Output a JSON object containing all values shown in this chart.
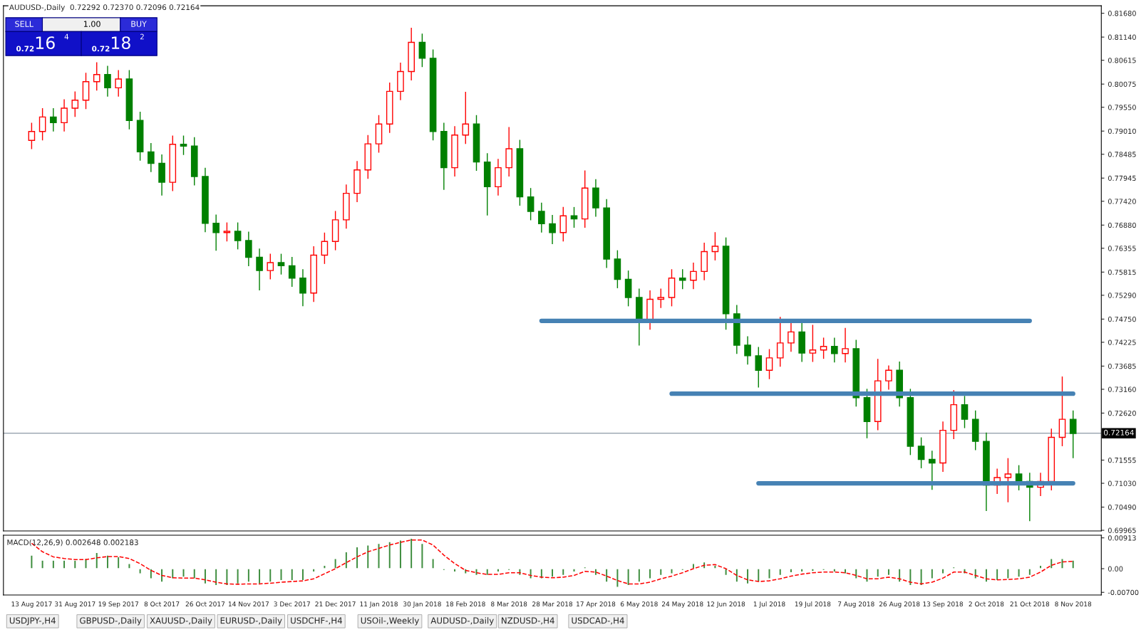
{
  "chart_data": [
    {
      "type": "candlestick",
      "title": "AUDUSD-,Daily  0.72292 0.72370 0.72096 0.72164",
      "categories": [
        null,
        null,
        null,
        null,
        null,
        null,
        null,
        null,
        null,
        null,
        null,
        null,
        null,
        null,
        null,
        null,
        null,
        null,
        null,
        null,
        null,
        null,
        null,
        null,
        null,
        null,
        null,
        null,
        null,
        null,
        null,
        null,
        null,
        null,
        null,
        null,
        null,
        null,
        null,
        null,
        null,
        null,
        null,
        null,
        null,
        null,
        null,
        null,
        null,
        null,
        null,
        null,
        null,
        null,
        null,
        null,
        null,
        null,
        null,
        null,
        null,
        null,
        null,
        null,
        null,
        null,
        null,
        null,
        null,
        null,
        null,
        null,
        null,
        null,
        null,
        null,
        null,
        null,
        null,
        null,
        null,
        null,
        null,
        null,
        null,
        null,
        null,
        null,
        null,
        null,
        null,
        null,
        null,
        null,
        null,
        null,
        null
      ],
      "ohlc": [
        [
          0.788,
          0.792,
          0.786,
          0.79
        ],
        [
          0.79,
          0.7953,
          0.788,
          0.7933
        ],
        [
          0.7933,
          0.7953,
          0.79,
          0.792
        ],
        [
          0.792,
          0.7973,
          0.79,
          0.7953
        ],
        [
          0.7953,
          0.7991,
          0.7933,
          0.7971
        ],
        [
          0.7971,
          0.8033,
          0.7951,
          0.8013
        ],
        [
          0.8013,
          0.8057,
          0.7993,
          0.8029
        ],
        [
          0.8029,
          0.8049,
          0.7979,
          0.7999
        ],
        [
          0.7999,
          0.8039,
          0.7979,
          0.8019
        ],
        [
          0.8019,
          0.8039,
          0.7905,
          0.7925
        ],
        [
          0.7925,
          0.7945,
          0.7834,
          0.7854
        ],
        [
          0.7854,
          0.7874,
          0.7808,
          0.7828
        ],
        [
          0.7828,
          0.7848,
          0.7755,
          0.7785
        ],
        [
          0.7785,
          0.7891,
          0.7765,
          0.7871
        ],
        [
          0.7871,
          0.7891,
          0.7847,
          0.7867
        ],
        [
          0.7867,
          0.7887,
          0.7778,
          0.7798
        ],
        [
          0.7798,
          0.7818,
          0.7672,
          0.7692
        ],
        [
          0.7692,
          0.7712,
          0.763,
          0.7671
        ],
        [
          0.7671,
          0.7694,
          0.7651,
          0.7674
        ],
        [
          0.7674,
          0.7694,
          0.7633,
          0.7653
        ],
        [
          0.7653,
          0.7673,
          0.7595,
          0.7615
        ],
        [
          0.7615,
          0.7635,
          0.754,
          0.7585
        ],
        [
          0.7585,
          0.7623,
          0.7565,
          0.7603
        ],
        [
          0.7603,
          0.7623,
          0.7576,
          0.7596
        ],
        [
          0.7596,
          0.7616,
          0.7548,
          0.7568
        ],
        [
          0.7568,
          0.7588,
          0.7504,
          0.7534
        ],
        [
          0.7534,
          0.764,
          0.7514,
          0.762
        ],
        [
          0.762,
          0.7671,
          0.76,
          0.7651
        ],
        [
          0.7651,
          0.772,
          0.7631,
          0.77
        ],
        [
          0.77,
          0.778,
          0.768,
          0.776
        ],
        [
          0.776,
          0.7833,
          0.774,
          0.7813
        ],
        [
          0.7813,
          0.7892,
          0.7793,
          0.7872
        ],
        [
          0.7872,
          0.7937,
          0.7852,
          0.7917
        ],
        [
          0.7917,
          0.8011,
          0.7897,
          0.7991
        ],
        [
          0.7991,
          0.8056,
          0.7971,
          0.8036
        ],
        [
          0.8036,
          0.8135,
          0.8016,
          0.8102
        ],
        [
          0.8102,
          0.8122,
          0.8046,
          0.8066
        ],
        [
          0.8066,
          0.8086,
          0.788,
          0.79
        ],
        [
          0.79,
          0.792,
          0.7768,
          0.7818
        ],
        [
          0.7818,
          0.7912,
          0.7798,
          0.7892
        ],
        [
          0.7892,
          0.799,
          0.7872,
          0.7917
        ],
        [
          0.7917,
          0.7937,
          0.7811,
          0.7831
        ],
        [
          0.7831,
          0.7851,
          0.771,
          0.7775
        ],
        [
          0.7775,
          0.7838,
          0.7755,
          0.7818
        ],
        [
          0.7818,
          0.791,
          0.7798,
          0.7861
        ],
        [
          0.7861,
          0.7881,
          0.7732,
          0.7752
        ],
        [
          0.7752,
          0.7772,
          0.7699,
          0.7719
        ],
        [
          0.7719,
          0.7739,
          0.7671,
          0.7691
        ],
        [
          0.7691,
          0.7711,
          0.7645,
          0.7671
        ],
        [
          0.7671,
          0.7729,
          0.7651,
          0.7709
        ],
        [
          0.7709,
          0.7729,
          0.7682,
          0.7702
        ],
        [
          0.7702,
          0.7812,
          0.7682,
          0.7772
        ],
        [
          0.7772,
          0.7792,
          0.7707,
          0.7727
        ],
        [
          0.7727,
          0.7747,
          0.7591,
          0.7611
        ],
        [
          0.7611,
          0.7631,
          0.7545,
          0.7565
        ],
        [
          0.7565,
          0.7585,
          0.7504,
          0.7524
        ],
        [
          0.7524,
          0.7544,
          0.7415,
          0.7471
        ],
        [
          0.7471,
          0.754,
          0.7451,
          0.752
        ],
        [
          0.752,
          0.7544,
          0.75,
          0.7524
        ],
        [
          0.7524,
          0.7588,
          0.7504,
          0.7568
        ],
        [
          0.7568,
          0.7588,
          0.7543,
          0.7563
        ],
        [
          0.7563,
          0.7603,
          0.7543,
          0.7583
        ],
        [
          0.7583,
          0.7648,
          0.7563,
          0.7628
        ],
        [
          0.7628,
          0.7672,
          0.7608,
          0.764
        ],
        [
          0.764,
          0.766,
          0.7451,
          0.7487
        ],
        [
          0.7487,
          0.7507,
          0.7396,
          0.7416
        ],
        [
          0.7416,
          0.7436,
          0.7372,
          0.7392
        ],
        [
          0.7392,
          0.7412,
          0.732,
          0.7359
        ],
        [
          0.7359,
          0.7407,
          0.7339,
          0.7387
        ],
        [
          0.7387,
          0.748,
          0.7367,
          0.7421
        ],
        [
          0.7421,
          0.7466,
          0.7401,
          0.7446
        ],
        [
          0.7446,
          0.7466,
          0.7378,
          0.7398
        ],
        [
          0.7398,
          0.7462,
          0.7378,
          0.7405
        ],
        [
          0.7405,
          0.7433,
          0.7385,
          0.7413
        ],
        [
          0.7413,
          0.7433,
          0.7377,
          0.7397
        ],
        [
          0.7397,
          0.7455,
          0.7377,
          0.7408
        ],
        [
          0.7408,
          0.7428,
          0.7277,
          0.7297
        ],
        [
          0.7297,
          0.7317,
          0.7205,
          0.7243
        ],
        [
          0.7243,
          0.7385,
          0.7223,
          0.7335
        ],
        [
          0.7335,
          0.737,
          0.7315,
          0.7359
        ],
        [
          0.7359,
          0.7379,
          0.7277,
          0.7297
        ],
        [
          0.7297,
          0.7317,
          0.7167,
          0.7187
        ],
        [
          0.7187,
          0.7207,
          0.7137,
          0.7157
        ],
        [
          0.7157,
          0.7177,
          0.7088,
          0.7149
        ],
        [
          0.7149,
          0.7243,
          0.7129,
          0.7223
        ],
        [
          0.7223,
          0.7314,
          0.7203,
          0.7281
        ],
        [
          0.7281,
          0.7301,
          0.7228,
          0.7248
        ],
        [
          0.7248,
          0.7268,
          0.7178,
          0.7198
        ],
        [
          0.7198,
          0.7218,
          0.704,
          0.7099
        ],
        [
          0.7099,
          0.7136,
          0.7079,
          0.7116
        ],
        [
          0.7116,
          0.716,
          0.706,
          0.7124
        ],
        [
          0.7124,
          0.7144,
          0.7087,
          0.7107
        ],
        [
          0.7107,
          0.7127,
          0.7017,
          0.7094
        ],
        [
          0.7094,
          0.7127,
          0.7074,
          0.7107
        ],
        [
          0.7107,
          0.7227,
          0.7087,
          0.7207
        ],
        [
          0.7207,
          0.7345,
          0.7187,
          0.7248
        ],
        [
          0.7248,
          0.7268,
          0.716,
          0.7216
        ]
      ],
      "colors": [
        "#ff0000",
        "#ff0000",
        "#008000",
        "#ff0000",
        "#ff0000",
        "#ff0000",
        "#ff0000",
        "#008000",
        "#ff0000",
        "#008000",
        "#008000",
        "#008000",
        "#008000",
        "#ff0000",
        "#008000",
        "#008000",
        "#008000",
        "#008000",
        "#ff0000",
        "#008000",
        "#008000",
        "#008000",
        "#ff0000",
        "#008000",
        "#008000",
        "#008000",
        "#ff0000",
        "#ff0000",
        "#ff0000",
        "#ff0000",
        "#ff0000",
        "#ff0000",
        "#ff0000",
        "#ff0000",
        "#ff0000",
        "#ff0000",
        "#008000",
        "#008000",
        "#008000",
        "#ff0000",
        "#ff0000",
        "#008000",
        "#008000",
        "#ff0000",
        "#ff0000",
        "#008000",
        "#008000",
        "#008000",
        "#008000",
        "#ff0000",
        "#008000",
        "#ff0000",
        "#008000",
        "#008000",
        "#008000",
        "#008000",
        "#008000",
        "#ff0000",
        "#ff0000",
        "#ff0000",
        "#008000",
        "#ff0000",
        "#ff0000",
        "#ff0000",
        "#008000",
        "#008000",
        "#008000",
        "#008000",
        "#ff0000",
        "#ff0000",
        "#ff0000",
        "#008000",
        "#ff0000",
        "#ff0000",
        "#008000",
        "#ff0000",
        "#008000",
        "#008000",
        "#ff0000",
        "#ff0000",
        "#008000",
        "#008000",
        "#008000",
        "#008000",
        "#ff0000",
        "#ff0000",
        "#008000",
        "#008000",
        "#008000",
        "#ff0000",
        "#ff0000",
        "#008000",
        "#008000",
        "#ff0000",
        "#ff0000",
        "#ff0000",
        "#008000"
      ],
      "series": [
        {
          "type": "line",
          "color": "#4682b4",
          "line_style": "solid",
          "values": [
            null,
            null,
            null,
            null,
            null,
            null,
            null,
            null,
            null,
            null,
            null,
            null,
            null,
            null,
            null,
            null,
            null,
            null,
            null,
            null,
            null,
            null,
            null,
            null,
            null,
            null,
            null,
            null,
            null,
            null,
            null,
            null,
            null,
            null,
            null,
            null,
            null,
            null,
            null,
            null,
            null,
            null,
            null,
            null,
            null,
            null,
            null,
            0.7471,
            0.7471,
            0.7471,
            0.7471,
            0.7471,
            0.7471,
            0.7471,
            0.7471,
            0.7471,
            0.7471,
            0.7471,
            0.7471,
            0.7471,
            0.7471,
            0.7471,
            0.7471,
            0.7471,
            0.7471,
            0.7471,
            0.7471,
            0.7471,
            0.7471,
            0.7471,
            0.7471,
            0.7471,
            0.7471,
            0.7471,
            0.7471,
            0.7471,
            0.7471,
            0.7471,
            0.7471,
            0.7471,
            0.7471,
            0.7471,
            0.7471,
            0.7471,
            0.7471,
            0.7471,
            0.7471,
            0.7471,
            0.7471,
            0.7471,
            0.7471,
            0.7471,
            0.7471,
            null,
            null,
            null,
            null
          ]
        },
        {
          "type": "line",
          "color": "#4682b4",
          "line_style": "solid",
          "values": [
            null,
            null,
            null,
            null,
            null,
            null,
            null,
            null,
            null,
            null,
            null,
            null,
            null,
            null,
            null,
            null,
            null,
            null,
            null,
            null,
            null,
            null,
            null,
            null,
            null,
            null,
            null,
            null,
            null,
            null,
            null,
            null,
            null,
            null,
            null,
            null,
            null,
            null,
            null,
            null,
            null,
            null,
            null,
            null,
            null,
            null,
            null,
            null,
            null,
            null,
            null,
            null,
            null,
            null,
            null,
            null,
            null,
            null,
            null,
            0.7306,
            0.7306,
            0.7306,
            0.7306,
            0.7306,
            0.7306,
            0.7306,
            0.7306,
            0.7306,
            0.7306,
            0.7306,
            0.7306,
            0.7306,
            0.7306,
            0.7306,
            0.7306,
            0.7306,
            0.7306,
            0.7306,
            0.7306,
            0.7306,
            0.7306,
            0.7306,
            0.7306,
            0.7306,
            0.7306,
            0.7306,
            0.7306,
            0.7306,
            0.7306,
            0.7306,
            0.7306,
            0.7306,
            0.7306,
            0.7306,
            0.7306,
            0.7306,
            0.7306
          ]
        },
        {
          "type": "line",
          "color": "#4682b4",
          "line_style": "solid",
          "values": [
            null,
            null,
            null,
            null,
            null,
            null,
            null,
            null,
            null,
            null,
            null,
            null,
            null,
            null,
            null,
            null,
            null,
            null,
            null,
            null,
            null,
            null,
            null,
            null,
            null,
            null,
            null,
            null,
            null,
            null,
            null,
            null,
            null,
            null,
            null,
            null,
            null,
            null,
            null,
            null,
            null,
            null,
            null,
            null,
            null,
            null,
            null,
            null,
            null,
            null,
            null,
            null,
            null,
            null,
            null,
            null,
            null,
            null,
            null,
            null,
            null,
            null,
            null,
            null,
            null,
            null,
            null,
            0.7103,
            0.7103,
            0.7103,
            0.7103,
            0.7103,
            0.7103,
            0.7103,
            0.7103,
            0.7103,
            0.7103,
            0.7103,
            0.7103,
            0.7103,
            0.7103,
            0.7103,
            0.7103,
            0.7103,
            0.7103,
            0.7103,
            0.7103,
            0.7103,
            0.7103,
            0.7103,
            0.7103,
            0.7103,
            0.7103,
            0.7103,
            0.7103,
            0.7103,
            0.7103
          ]
        }
      ],
      "ylim": [
        0.6995,
        0.8185
      ],
      "yticks": [
        {
          "value": 0.8168,
          "label": "0.81680"
        },
        {
          "value": 0.8114,
          "label": "0.81140"
        },
        {
          "value": 0.80615,
          "label": "0.80615"
        },
        {
          "value": 0.80075,
          "label": "0.80075"
        },
        {
          "value": 0.7955,
          "label": "0.79550"
        },
        {
          "value": 0.7901,
          "label": "0.79010"
        },
        {
          "value": 0.78485,
          "label": "0.78485"
        },
        {
          "value": 0.77945,
          "label": "0.77945"
        },
        {
          "value": 0.7742,
          "label": "0.77420"
        },
        {
          "value": 0.7688,
          "label": "0.76880"
        },
        {
          "value": 0.76355,
          "label": "0.76355"
        },
        {
          "value": 0.75815,
          "label": "0.75815"
        },
        {
          "value": 0.7529,
          "label": "0.75290"
        },
        {
          "value": 0.7475,
          "label": "0.74750"
        },
        {
          "value": 0.74225,
          "label": "0.74225"
        },
        {
          "value": 0.73685,
          "label": "0.73685"
        },
        {
          "value": 0.7316,
          "label": "0.73160"
        },
        {
          "value": 0.7262,
          "label": "0.72620"
        },
        {
          "value": 0.71555,
          "label": "0.71555"
        },
        {
          "value": 0.7103,
          "label": "0.71030"
        },
        {
          "value": 0.7049,
          "label": "0.70490"
        },
        {
          "value": 0.69965,
          "label": "0.69965"
        }
      ],
      "ref_lines": [
        {
          "axis": "y",
          "value": 0.72164,
          "label": "0.72164",
          "color": "#708090"
        }
      ],
      "grid": false,
      "annotations": [
        "SELL",
        "1.00",
        "BUY",
        "0.72",
        "16",
        "4",
        "0.72",
        "18",
        "2"
      ]
    },
    {
      "type": "bar",
      "title": "MACD(12,26,9) 0.002648 0.002183",
      "categories": [
        "13 Aug 2017",
        null,
        null,
        null,
        "31 Aug 2017",
        null,
        null,
        null,
        "19 Sep 2017",
        null,
        null,
        null,
        "8 Oct 2017",
        null,
        null,
        null,
        "26 Oct 2017",
        null,
        null,
        null,
        "14 Nov 2017",
        null,
        null,
        null,
        "3 Dec 2017",
        null,
        null,
        null,
        "21 Dec 2017",
        null,
        null,
        null,
        "11 Jan 2018",
        null,
        null,
        null,
        "30 Jan 2018",
        null,
        null,
        null,
        "18 Feb 2018",
        null,
        null,
        null,
        "8 Mar 2018",
        null,
        null,
        null,
        "28 Mar 2018",
        null,
        null,
        null,
        "17 Apr 2018",
        null,
        null,
        null,
        "6 May 2018",
        null,
        null,
        null,
        "24 May 2018",
        null,
        null,
        null,
        "12 Jun 2018",
        null,
        null,
        null,
        "1 Jul 2018",
        null,
        null,
        null,
        "19 Jul 2018",
        null,
        null,
        null,
        "7 Aug 2018",
        null,
        null,
        null,
        "26 Aug 2018",
        null,
        null,
        null,
        "13 Sep 2018",
        null,
        null,
        null,
        "2 Oct 2018",
        null,
        null,
        null,
        "21 Oct 2018",
        null,
        null,
        null,
        "8 Nov 2018"
      ],
      "series": [
        {
          "type": "bar",
          "color": "#3c8c3c",
          "values": [
            0.004,
            0.0025,
            0.0025,
            0.0025,
            0.0025,
            0.003,
            0.0048,
            0.004,
            0.0035,
            0.0015,
            -0.0015,
            -0.003,
            -0.004,
            -0.003,
            -0.0025,
            -0.003,
            -0.0045,
            -0.005,
            -0.005,
            -0.0045,
            -0.004,
            -0.0045,
            -0.004,
            -0.0035,
            -0.0035,
            -0.0035,
            -0.001,
            0.001,
            0.003,
            0.005,
            0.0065,
            0.007,
            0.0075,
            0.008,
            0.0085,
            0.009,
            0.0075,
            0.003,
            -0.0005,
            -0.001,
            -0.0015,
            -0.002,
            -0.002,
            -0.001,
            -0.0005,
            -0.002,
            -0.003,
            -0.003,
            -0.0025,
            -0.002,
            -0.001,
            0.0005,
            -0.002,
            -0.004,
            -0.0055,
            -0.005,
            -0.004,
            -0.003,
            -0.002,
            -0.0015,
            -0.0005,
            0.0015,
            0.002,
            0.001,
            -0.002,
            -0.004,
            -0.0045,
            -0.004,
            -0.003,
            -0.002,
            -0.0012,
            -0.001,
            -0.0008,
            -0.0005,
            -0.001,
            -0.0015,
            -0.003,
            -0.004,
            -0.0025,
            -0.002,
            -0.004,
            -0.005,
            -0.005,
            -0.003,
            -0.0015,
            0.0005,
            -0.0015,
            -0.003,
            -0.004,
            -0.0035,
            -0.003,
            -0.0025,
            -0.002,
            0.001,
            0.003,
            0.003,
            0.0025
          ]
        },
        {
          "type": "line",
          "color": "#ff0000",
          "line_style": "dashed",
          "values": [
            0.0075,
            0.005,
            0.0035,
            0.003,
            0.0027,
            0.0027,
            0.0032,
            0.0036,
            0.0036,
            0.003,
            0.0015,
            -0.0005,
            -0.002,
            -0.0027,
            -0.0028,
            -0.0028,
            -0.0033,
            -0.004,
            -0.0045,
            -0.0046,
            -0.0045,
            -0.0045,
            -0.0043,
            -0.004,
            -0.0038,
            -0.0036,
            -0.003,
            -0.0015,
            0.0,
            0.0018,
            0.0035,
            0.005,
            0.006,
            0.007,
            0.0078,
            0.0085,
            0.0085,
            0.007,
            0.004,
            0.0015,
            -0.0005,
            -0.0012,
            -0.0017,
            -0.0017,
            -0.0012,
            -0.0012,
            -0.002,
            -0.0025,
            -0.0027,
            -0.0025,
            -0.002,
            -0.0008,
            -0.001,
            -0.0022,
            -0.0035,
            -0.0045,
            -0.0045,
            -0.004,
            -0.003,
            -0.0022,
            -0.0012,
            0.0,
            0.001,
            0.0012,
            0.0,
            -0.002,
            -0.0033,
            -0.0038,
            -0.0036,
            -0.003,
            -0.0022,
            -0.0016,
            -0.0012,
            -0.001,
            -0.001,
            -0.0012,
            -0.002,
            -0.003,
            -0.003,
            -0.0025,
            -0.003,
            -0.004,
            -0.0045,
            -0.004,
            -0.0028,
            -0.001,
            -0.001,
            -0.002,
            -0.003,
            -0.0033,
            -0.0032,
            -0.003,
            -0.0025,
            -0.001,
            0.001,
            0.002,
            0.0022
          ]
        }
      ],
      "ylim": [
        -0.0078,
        0.0099
      ],
      "yticks": [
        {
          "value": 0.00913,
          "label": "0.00913"
        },
        {
          "value": 0,
          "label": "0.00"
        },
        {
          "value": -0.007,
          "label": "-0.00700"
        }
      ],
      "grid": false,
      "annotations": [
        "USDJPY-,H4",
        "GBPUSD-,Daily",
        "XAUUSD-,Daily",
        "EURUSD-,Daily",
        "USDCHF-,H4",
        "USOil-,Weekly",
        "AUDUSD-,Daily",
        "NZDUSD-,H4",
        "USDCAD-,H4"
      ]
    }
  ]
}
